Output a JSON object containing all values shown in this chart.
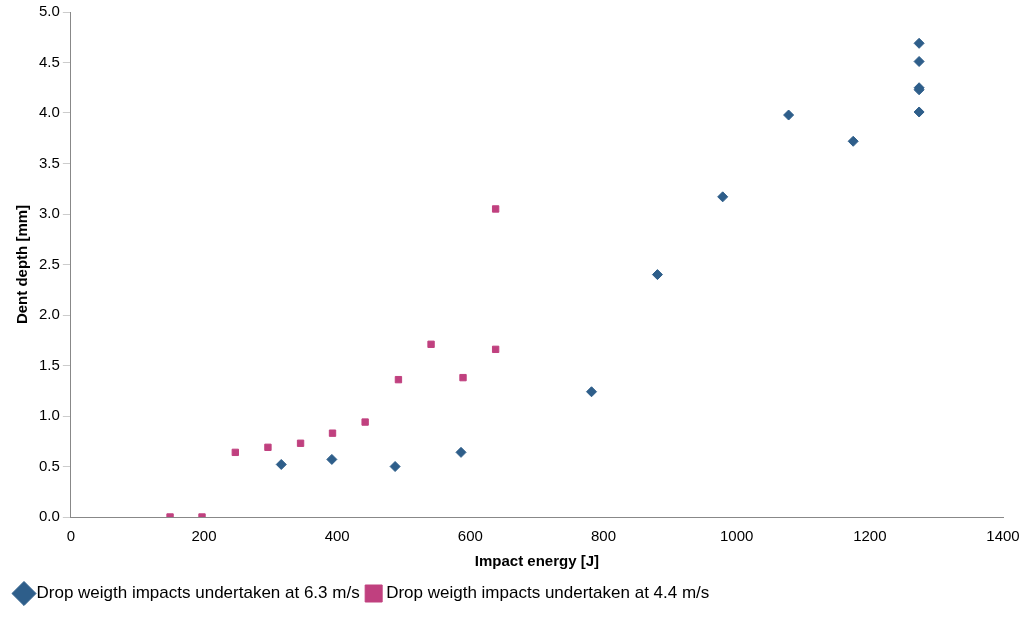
{
  "chart_data": {
    "type": "scatter",
    "xlabel": "Impact energy [J]",
    "ylabel": "Dent depth [mm]",
    "xlim": [
      0,
      1400
    ],
    "xticks": [
      0,
      200,
      400,
      600,
      800,
      1000,
      1200,
      1400
    ],
    "ylim": [
      0,
      5
    ],
    "yticks": [
      {
        "value": 0,
        "label": "0.0"
      },
      {
        "value": 0.5,
        "label": "0.5"
      },
      {
        "value": 1,
        "label": "1.0"
      },
      {
        "value": 1.5,
        "label": "1.5"
      },
      {
        "value": 2,
        "label": "2.0"
      },
      {
        "value": 2.5,
        "label": "2.5"
      },
      {
        "value": 3,
        "label": "3.0"
      },
      {
        "value": 3.5,
        "label": "3.5"
      },
      {
        "value": 4,
        "label": "4.0"
      },
      {
        "value": 4.5,
        "label": "4.5"
      },
      {
        "value": 5,
        "label": "5.0"
      }
    ],
    "grid": false,
    "legend": "bottom",
    "series": [
      {
        "name": "Drop weigth impacts undertaken at 6.3 m/s",
        "color": "#2e5e8a",
        "marker": "diamond",
        "x": [
          316,
          392,
          487,
          586,
          782,
          881,
          979,
          1078,
          1175,
          1274,
          1274,
          1274,
          1274,
          1274
        ],
        "values": [
          0.52,
          0.57,
          0.5,
          0.64,
          1.24,
          2.4,
          3.17,
          3.98,
          3.72,
          4.69,
          4.51,
          4.25,
          4.23,
          4.01
        ]
      },
      {
        "name": "Drop weigth impacts undertaken at 4.4 m/s",
        "color": "#c0407f",
        "marker": "square",
        "x": [
          149,
          197,
          247,
          296,
          345,
          393,
          442,
          492,
          541,
          589,
          638,
          638
        ],
        "values": [
          0,
          0,
          0.64,
          0.69,
          0.73,
          0.83,
          0.94,
          1.36,
          1.71,
          1.38,
          1.66,
          3.05
        ]
      }
    ]
  }
}
